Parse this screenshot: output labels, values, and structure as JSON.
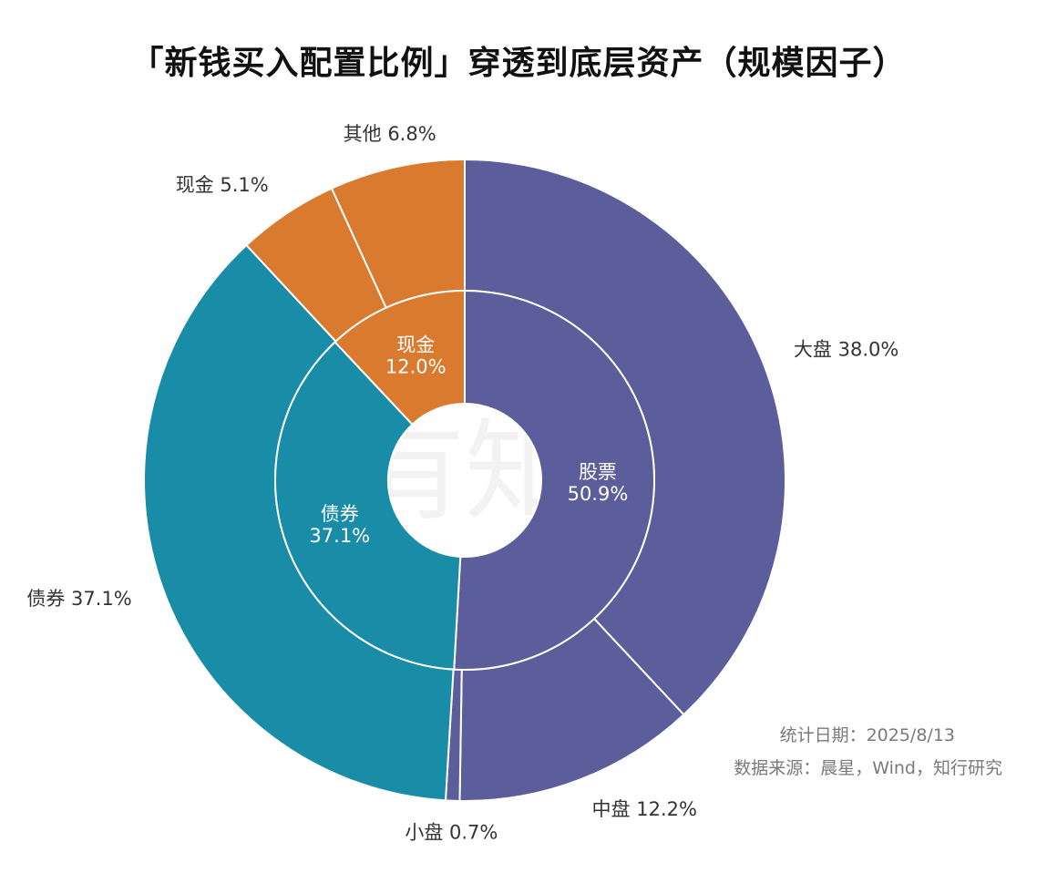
{
  "chart_data": {
    "type": "pie",
    "title": "「新钱买入配置比例」穿透到底层资产（规模因子）",
    "inner_ring": [
      {
        "name": "股票",
        "value": 50.9,
        "label": "50.9%",
        "color": "#5b5e9b"
      },
      {
        "name": "债券",
        "value": 37.1,
        "label": "37.1%",
        "color": "#198ca8"
      },
      {
        "name": "现金",
        "value": 12.0,
        "label": "12.0%",
        "color": "#d97a2f"
      }
    ],
    "outer_ring": [
      {
        "name": "大盘",
        "value": 38.0,
        "label": "大盘 38.0%",
        "color": "#5b5e9b"
      },
      {
        "name": "中盘",
        "value": 12.2,
        "label": "中盘 12.2%",
        "color": "#5b5e9b"
      },
      {
        "name": "小盘",
        "value": 0.7,
        "label": "小盘 0.7%",
        "color": "#5b5e9b"
      },
      {
        "name": "债券",
        "value": 37.1,
        "label": "债券 37.1%",
        "color": "#198ca8"
      },
      {
        "name": "现金",
        "value": 5.1,
        "label": "现金 5.1%",
        "color": "#d97a2f"
      },
      {
        "name": "其他",
        "value": 6.8,
        "label": "其他 6.8%",
        "color": "#d97a2f"
      }
    ],
    "watermark": "四有知行"
  },
  "footer": {
    "date_note": "统计日期：2025/8/13",
    "source_note": "数据来源：晨星，Wind，知行研究"
  }
}
